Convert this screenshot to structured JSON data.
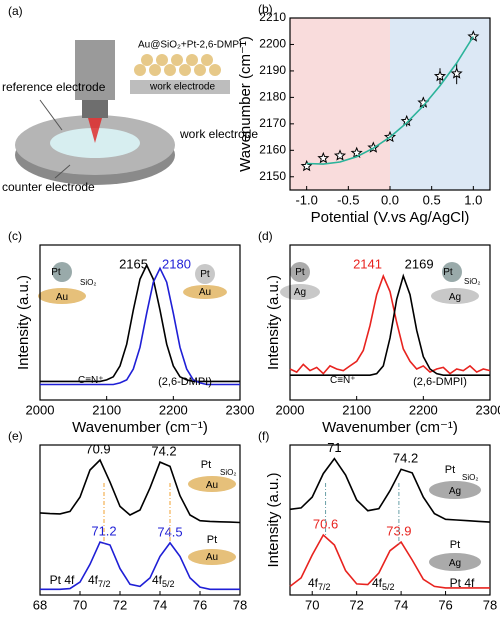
{
  "illustration": {
    "label": "(a)",
    "texts": [
      "Au@SiO₂+Pt-2,6-DMPI",
      "work electrode",
      "reference electrode",
      "work electrode",
      "counter electrode"
    ]
  },
  "chart_data": [
    {
      "type": "scatter",
      "label": "(b)",
      "x_label": "Potential (V.vs Ag/AgCl)",
      "y_label": "Wavenumber (cm⁻¹)",
      "xlim": [
        -1.2,
        1.2
      ],
      "ylim": [
        2145,
        2210
      ],
      "xticks": [
        {
          "value": -1,
          "label": "-1.0"
        },
        -0.5,
        {
          "value": 0,
          "label": "0.0"
        },
        0.5,
        {
          "value": 1,
          "label": "1.0"
        }
      ],
      "yticks": [
        2150,
        2160,
        2170,
        2180,
        2190,
        2200,
        2210
      ],
      "regions": [
        {
          "xlim": [
            -1.2,
            0
          ],
          "color": "#f9dcdc"
        },
        {
          "xlim": [
            0,
            1.2
          ],
          "color": "#dce8f5"
        }
      ],
      "series": [
        {
          "kind": "scatter",
          "color": "#000000",
          "x": [
            -1.0,
            -0.8,
            -0.6,
            -0.4,
            -0.2,
            0.0,
            0.2,
            0.4,
            0.6,
            0.8,
            1.0
          ],
          "values": [
            2154,
            2157,
            2158,
            2159,
            2161,
            2165,
            2171,
            2178,
            2188,
            2189,
            2203
          ],
          "errors": [
            1,
            1,
            1,
            1.5,
            1,
            1,
            2,
            2,
            3,
            4,
            1
          ]
        },
        {
          "kind": "line",
          "color": "#2bb39a",
          "x": [
            -1.0,
            -0.8,
            -0.6,
            -0.4,
            -0.2,
            0.0,
            0.2,
            0.4,
            0.6,
            0.8,
            1.0
          ],
          "values": [
            2155,
            2154.8,
            2155.6,
            2157.6,
            2160.8,
            2165,
            2170.4,
            2176.8,
            2184.4,
            2193,
            2203
          ]
        }
      ]
    },
    {
      "type": "line",
      "label": "(c)",
      "x_label": "Wavenumber (cm⁻¹)",
      "y_label": "Intensity (a.u.)",
      "xlim": [
        2000,
        2300
      ],
      "ylim": [
        0,
        1
      ],
      "xticks": [
        2000,
        2100,
        2200,
        2300
      ],
      "x": [
        2000,
        2010,
        2020,
        2030,
        2040,
        2050,
        2060,
        2070,
        2080,
        2090,
        2100,
        2110,
        2120,
        2130,
        2140,
        2150,
        2160,
        2170,
        2180,
        2190,
        2200,
        2210,
        2220,
        2230,
        2240,
        2250,
        2260,
        2270,
        2280,
        2290,
        2300
      ],
      "series": [
        {
          "color": "#000000",
          "peaks": [
            2165
          ],
          "values": [
            0.12,
            0.12,
            0.12,
            0.12,
            0.12,
            0.12,
            0.12,
            0.12,
            0.12,
            0.12,
            0.13,
            0.15,
            0.22,
            0.36,
            0.58,
            0.78,
            0.87,
            0.78,
            0.58,
            0.36,
            0.22,
            0.15,
            0.13,
            0.12,
            0.12,
            0.12,
            0.12,
            0.12,
            0.12,
            0.12,
            0.12
          ]
        },
        {
          "color": "#1f1fd6",
          "peaks": [
            2180
          ],
          "values": [
            0.1,
            0.1,
            0.1,
            0.1,
            0.1,
            0.1,
            0.1,
            0.1,
            0.1,
            0.1,
            0.1,
            0.1,
            0.11,
            0.13,
            0.2,
            0.34,
            0.56,
            0.76,
            0.85,
            0.76,
            0.56,
            0.34,
            0.2,
            0.13,
            0.11,
            0.1,
            0.1,
            0.1,
            0.1,
            0.1,
            0.1
          ]
        }
      ],
      "annotations": [
        {
          "text": "Pt"
        },
        {
          "text": "SiO₂"
        },
        {
          "text": "Au"
        },
        {
          "text": "Pt"
        },
        {
          "text": "Au"
        },
        {
          "text": "C≡N⁺"
        },
        {
          "text": "(2,6-DMPI)"
        }
      ]
    },
    {
      "type": "line",
      "label": "(d)",
      "x_label": "Wavenumber (cm⁻¹)",
      "y_label": "Intensity (a.u.)",
      "xlim": [
        2000,
        2300
      ],
      "ylim": [
        0,
        1
      ],
      "xticks": [
        2000,
        2100,
        2200,
        2300
      ],
      "x": [
        2000,
        2010,
        2020,
        2030,
        2040,
        2050,
        2060,
        2070,
        2080,
        2090,
        2100,
        2110,
        2120,
        2130,
        2140,
        2150,
        2160,
        2170,
        2180,
        2190,
        2200,
        2210,
        2220,
        2230,
        2240,
        2250,
        2260,
        2270,
        2280,
        2290,
        2300
      ],
      "series": [
        {
          "color": "#e8231f",
          "peaks": [
            2141
          ],
          "values": [
            0.2,
            0.18,
            0.23,
            0.19,
            0.21,
            0.17,
            0.22,
            0.2,
            0.19,
            0.22,
            0.25,
            0.32,
            0.48,
            0.68,
            0.8,
            0.7,
            0.5,
            0.33,
            0.25,
            0.2,
            0.22,
            0.18,
            0.2,
            0.21,
            0.17,
            0.2,
            0.19,
            0.22,
            0.18,
            0.2,
            0.19
          ]
        },
        {
          "color": "#000000",
          "peaks": [
            2169
          ],
          "values": [
            0.16,
            0.16,
            0.16,
            0.16,
            0.16,
            0.16,
            0.16,
            0.16,
            0.16,
            0.16,
            0.16,
            0.16,
            0.16,
            0.17,
            0.22,
            0.4,
            0.65,
            0.8,
            0.68,
            0.45,
            0.28,
            0.2,
            0.17,
            0.16,
            0.16,
            0.16,
            0.16,
            0.16,
            0.16,
            0.16,
            0.16
          ]
        }
      ],
      "annotations": [
        {
          "text": "Pt"
        },
        {
          "text": "Ag"
        },
        {
          "text": "Pt"
        },
        {
          "text": "SiO₂"
        },
        {
          "text": "Ag"
        },
        {
          "text": "C≡N⁺"
        },
        {
          "text": "(2,6-DMPI)"
        }
      ]
    },
    {
      "type": "line",
      "label": "(e)",
      "xlim": [
        68,
        78
      ],
      "ylim": [
        0,
        2.1
      ],
      "xticks": [
        68,
        70,
        72,
        74,
        76,
        78
      ],
      "x": [
        68,
        68.5,
        69,
        69.5,
        70,
        70.5,
        71,
        71.5,
        72,
        72.5,
        73,
        73.5,
        74,
        74.5,
        75,
        75.5,
        76,
        76.5,
        77,
        77.5,
        78
      ],
      "series": [
        {
          "color": "#000000",
          "peaks": [
            70.9,
            74.2
          ],
          "values": [
            1.15,
            1.14,
            1.135,
            1.17,
            1.37,
            1.75,
            1.89,
            1.58,
            1.24,
            1.12,
            1.19,
            1.5,
            1.86,
            1.8,
            1.39,
            1.12,
            1.04,
            1.03,
            1.025,
            1.02,
            1.015
          ]
        },
        {
          "color": "#1f1fd6",
          "peaks": [
            71.2,
            74.5
          ],
          "drop_color": "#f0a030",
          "values": [
            0.08,
            0.08,
            0.08,
            0.09,
            0.18,
            0.43,
            0.74,
            0.7,
            0.37,
            0.15,
            0.12,
            0.24,
            0.54,
            0.73,
            0.54,
            0.24,
            0.11,
            0.08,
            0.08,
            0.08,
            0.08
          ]
        }
      ],
      "annotations": [
        {
          "text": "Pt"
        },
        {
          "text": "SiO₂"
        },
        {
          "text": "Au"
        },
        {
          "text": "Pt"
        },
        {
          "text": "Au"
        },
        {
          "text": "Pt 4f"
        },
        {
          "text": "4f",
          "sub": "7/2"
        },
        {
          "text": "4f",
          "sub": "5/2"
        }
      ]
    },
    {
      "type": "line",
      "label": "(f)",
      "y_label": "Intensity (a.u.)",
      "xlim": [
        69,
        78
      ],
      "ylim": [
        0,
        2.1
      ],
      "xticks": [
        70,
        72,
        74,
        76,
        78
      ],
      "x": [
        69,
        69.5,
        70,
        70.5,
        71,
        71.5,
        72,
        72.5,
        73,
        73.5,
        74,
        74.5,
        75,
        75.5,
        76,
        76.5,
        77,
        77.5,
        78
      ],
      "series": [
        {
          "color": "#000000",
          "peaks": [
            71.0,
            74.2
          ],
          "values": [
            1.2,
            1.22,
            1.37,
            1.7,
            1.91,
            1.68,
            1.33,
            1.18,
            1.21,
            1.46,
            1.76,
            1.71,
            1.37,
            1.14,
            1.06,
            1.05,
            1.04,
            1.03,
            1.02
          ]
        },
        {
          "color": "#e8231f",
          "peaks": [
            70.6,
            73.9
          ],
          "drop_color": "#6aa0a8",
          "values": [
            0.12,
            0.24,
            0.56,
            0.84,
            0.7,
            0.34,
            0.155,
            0.145,
            0.31,
            0.62,
            0.74,
            0.49,
            0.22,
            0.12,
            0.1,
            0.1,
            0.1,
            0.1,
            0.1
          ]
        }
      ],
      "annotations": [
        {
          "text": "Pt"
        },
        {
          "text": "SiO₂"
        },
        {
          "text": "Ag"
        },
        {
          "text": "Pt"
        },
        {
          "text": "Ag"
        },
        {
          "text": "4f",
          "sub": "7/2"
        },
        {
          "text": "4f",
          "sub": "5/2"
        },
        {
          "text": "Pt 4f"
        }
      ]
    }
  ]
}
